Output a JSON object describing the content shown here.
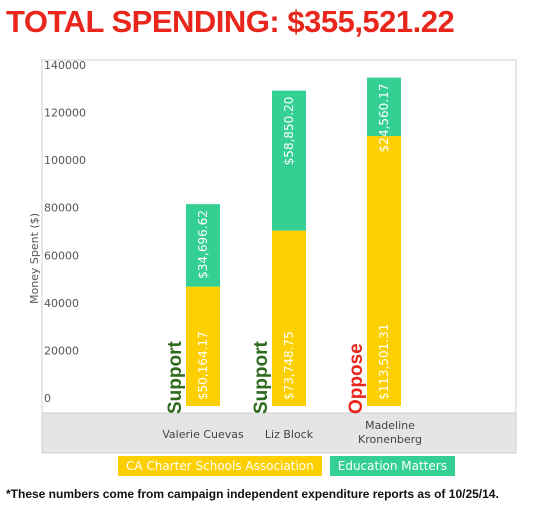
{
  "title": "TOTAL SPENDING: $355,521.22",
  "footnote": "*These numbers come from campaign independent expenditure reports as of 10/25/14.",
  "colors": {
    "title": "#e8261c",
    "charter": "#fcd000",
    "education": "#34cf93",
    "support": "#2f6b1c",
    "oppose": "#e8261c",
    "plot_bg": "#ffffff",
    "axis_band": "#e5e5e5"
  },
  "chart_data": {
    "type": "bar",
    "stacked": true,
    "ylabel": "Money Spent ($)",
    "ylim": [
      0,
      140000
    ],
    "yticks": [
      "0",
      "20000",
      "40000",
      "60000",
      "80000",
      "100000",
      "120000",
      "140000"
    ],
    "categories": [
      {
        "lines": [
          "Valerie Cuevas"
        ],
        "stance": "Support"
      },
      {
        "lines": [
          "Liz Block"
        ],
        "stance": "Support"
      },
      {
        "lines": [
          "Madeline",
          "Kronenberg"
        ],
        "stance": "Oppose"
      }
    ],
    "series": [
      {
        "name": "CA Charter Schools Association",
        "values": [
          50164.17,
          73748.75,
          113501.31
        ],
        "labels": [
          "$50,164.17",
          "$73,748.75",
          "$113,501.31"
        ]
      },
      {
        "name": "Education Matters",
        "values": [
          34696.62,
          58850.2,
          24560.17
        ],
        "labels": [
          "$34,696.62",
          "$58,850.20",
          "$24,560.17"
        ]
      }
    ],
    "legend_position": "bottom"
  }
}
